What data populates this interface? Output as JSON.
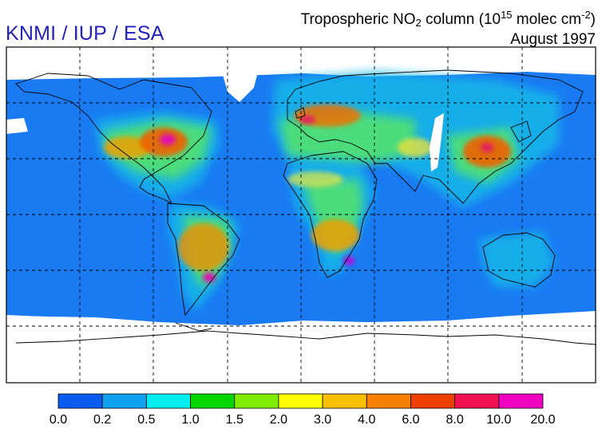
{
  "credit": "KNMI / IUP / ESA",
  "title": {
    "prefix": "Tropospheric NO",
    "subscript": "2",
    "middle": " column  (10",
    "superscript": "15",
    "unit": " molec cm",
    "unit_exp": "-2",
    "suffix": ")",
    "period": "August 1997"
  },
  "colorbar": {
    "colors": [
      "#0a5cf0",
      "#12a0f0",
      "#00eef0",
      "#00d800",
      "#80ec00",
      "#ffff00",
      "#f8c000",
      "#f88000",
      "#f04000",
      "#f01050",
      "#f000c0",
      "#a000f0"
    ],
    "tick_labels": [
      "0.0",
      "0.2",
      "0.5",
      "1.0",
      "1.5",
      "2.0",
      "3.0",
      "4.0",
      "6.0",
      "8.0",
      "10.0",
      "20.0"
    ]
  },
  "colors": {
    "ocean_background": "#1a7af2",
    "no_data": "#ffffff",
    "gridline": "#000000",
    "credit_text": "#2222bb"
  }
}
